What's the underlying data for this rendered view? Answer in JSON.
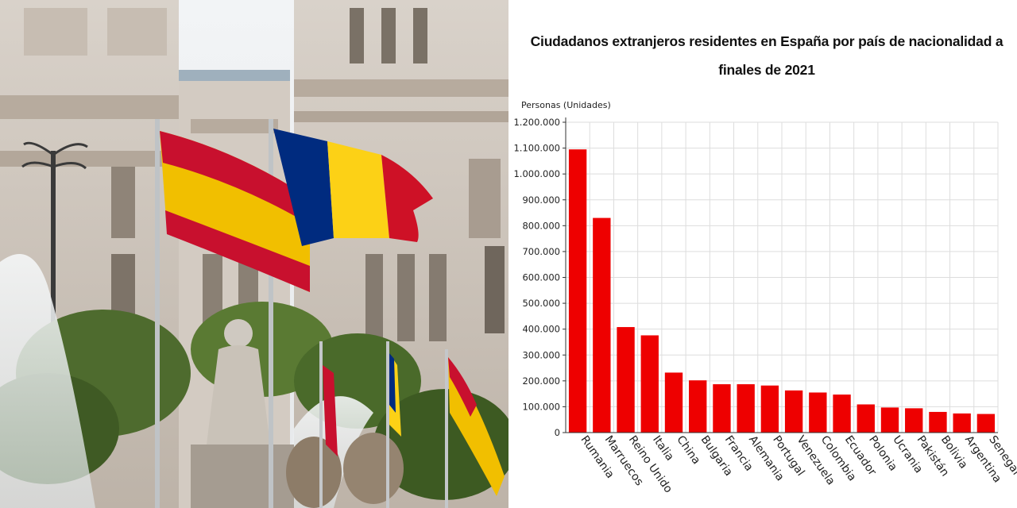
{
  "photo": {
    "description_icon": "madrid-cibeles-flags-photo",
    "colors": {
      "sky": "#e8ecf0",
      "building": "#cfc6bd",
      "spain_red": "#c8102e",
      "spain_yellow": "#f1bf00",
      "romania_blue": "#002b7f",
      "romania_yellow": "#fcd116",
      "romania_red": "#ce1126"
    }
  },
  "chart_data": {
    "type": "bar",
    "title": "Ciudadanos extranjeros residentes en España por país de nacionalidad a finales de 2021",
    "xlabel": "",
    "ylabel": "Personas (Unidades)",
    "ylim": [
      0,
      1200000
    ],
    "yticks": [
      "0",
      "100.000",
      "200.000",
      "300.000",
      "400.000",
      "500.000",
      "600.000",
      "700.000",
      "800.000",
      "900.000",
      "1.000.000",
      "1.100.000",
      "1.200.000"
    ],
    "categories": [
      "Rumania",
      "Marruecos",
      "Reino Unido",
      "Italia",
      "China",
      "Bulgaria",
      "Francia",
      "Alemania",
      "Portugal",
      "Venezuela",
      "Colombia",
      "Ecuador",
      "Polonia",
      "Ucrania",
      "Pakistán",
      "Bolivia",
      "Argentina",
      "Senegal"
    ],
    "values": [
      1095000,
      830000,
      408000,
      376000,
      232000,
      202000,
      187000,
      187000,
      182000,
      163000,
      155000,
      147000,
      109000,
      97000,
      94000,
      80000,
      74000,
      72000
    ],
    "bar_color": "#ee0000",
    "grid": true
  }
}
